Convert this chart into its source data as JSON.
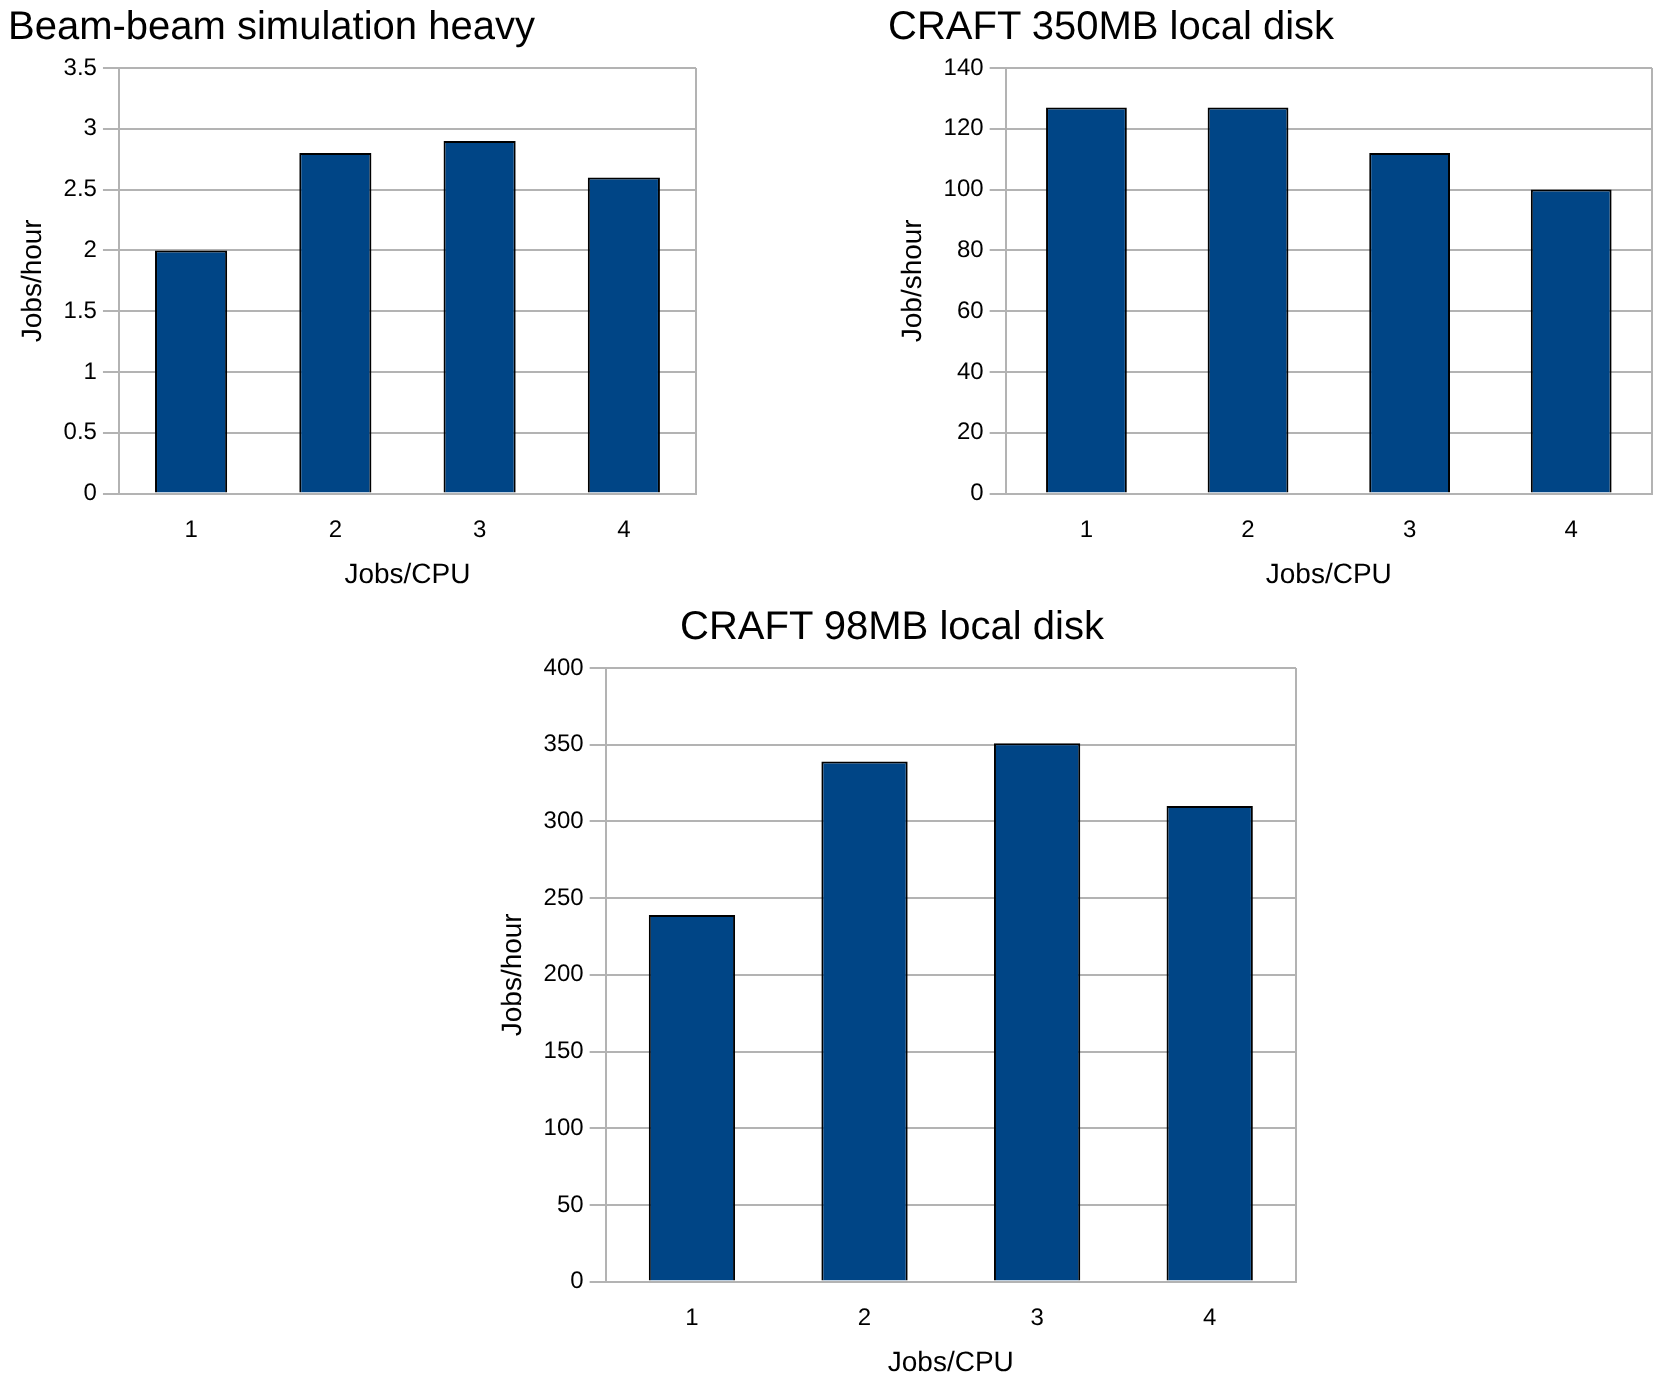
{
  "chart_data": [
    {
      "type": "bar",
      "title": "Beam-beam simulation heavy",
      "xlabel": "Jobs/CPU",
      "ylabel": "Jobs/hour",
      "categories": [
        "1",
        "2",
        "3",
        "4"
      ],
      "values": [
        2,
        2.8,
        2.9,
        2.6
      ],
      "color": "#004586",
      "ylim": [
        0,
        3.5
      ],
      "yticks": [
        0,
        0.5,
        1,
        1.5,
        2,
        2.5,
        3,
        3.5
      ],
      "grid": "y"
    },
    {
      "type": "bar",
      "title": "CRAFT 350MB local disk",
      "xlabel": "Jobs/CPU",
      "ylabel": "Job/shour",
      "categories": [
        "1",
        "2",
        "3",
        "4"
      ],
      "values": [
        127,
        127,
        112,
        100
      ],
      "color": "#004586",
      "ylim": [
        0,
        140
      ],
      "yticks": [
        0,
        20,
        40,
        60,
        80,
        100,
        120,
        140
      ],
      "grid": "y"
    },
    {
      "type": "bar",
      "title": "CRAFT 98MB local disk",
      "xlabel": "Jobs/CPU",
      "ylabel": "Jobs/hour",
      "categories": [
        "1",
        "2",
        "3",
        "4"
      ],
      "values": [
        239,
        339,
        351,
        310
      ],
      "color": "#004586",
      "ylim": [
        0,
        400
      ],
      "yticks": [
        0,
        50,
        100,
        150,
        200,
        250,
        300,
        350,
        400
      ],
      "grid": "y"
    }
  ]
}
